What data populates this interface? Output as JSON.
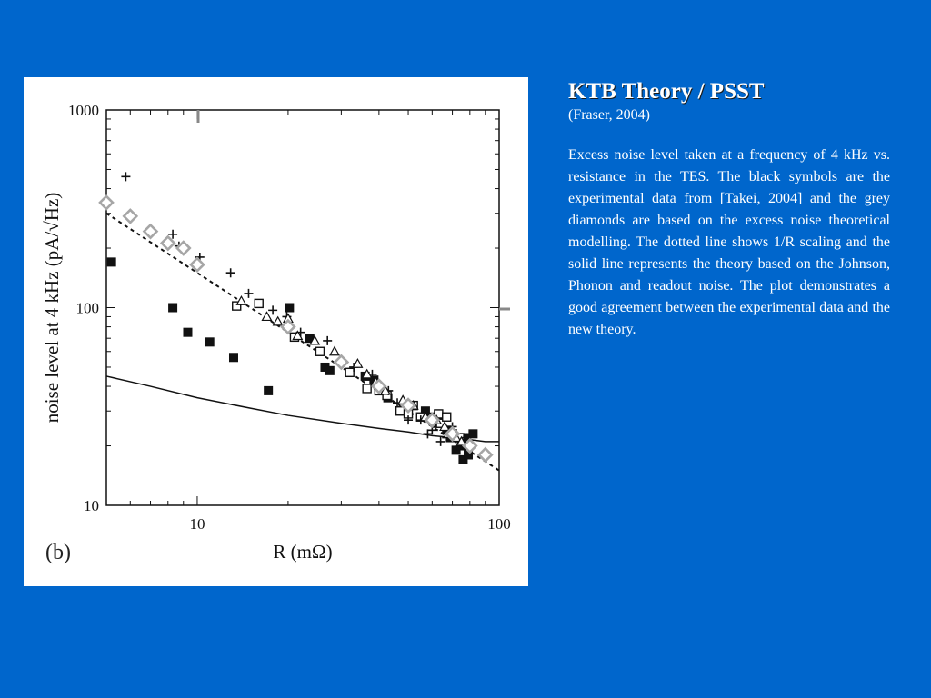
{
  "slide": {
    "title": "KTB Theory / PSST",
    "citation": "(Fraser, 2004)",
    "body": "Excess noise level taken at a frequency of 4 kHz vs. resistance in the TES.  The black symbols are the experimental data from [Takei, 2004] and the grey diamonds are based on the excess noise theoretical modelling.  The dotted line shows 1/R scaling and the solid line represents the theory based on the Johnson, Phonon and readout noise.  The plot demonstrates a good agreement between the experimental data and the new theory.",
    "background_color": "#0066cc"
  },
  "chart_data": {
    "type": "scatter",
    "panel_label": "(b)",
    "xlabel": "R (mΩ)",
    "ylabel": "noise level at 4 kHz (pA/√Hz)",
    "xscale": "log",
    "yscale": "log",
    "xlim": [
      5,
      100
    ],
    "ylim": [
      10,
      1000
    ],
    "x_ticks": [
      "10",
      "100"
    ],
    "y_ticks": [
      "10",
      "100",
      "1000"
    ],
    "grid": false,
    "series": [
      {
        "marker": "filled-square",
        "color": "#111111",
        "x": [
          5.2,
          8.3,
          9.3,
          11,
          13.2,
          17.2,
          20.2,
          23.6,
          26.5,
          27.5,
          36,
          38.5,
          42.8,
          47,
          57,
          60,
          62,
          65,
          67,
          69,
          72,
          75,
          76,
          78,
          79,
          82
        ],
        "y": [
          170,
          100,
          75,
          67,
          56,
          38,
          100,
          70,
          50,
          48,
          45,
          43,
          35,
          30,
          30,
          28,
          26,
          28,
          24,
          22,
          19,
          20,
          17,
          22,
          18,
          23
        ]
      },
      {
        "marker": "open-square",
        "color": "#111111",
        "x": [
          13.5,
          16,
          21,
          25.5,
          32,
          36.5,
          40,
          42.5,
          47,
          50,
          52,
          55,
          61,
          63,
          64,
          67,
          70,
          74
        ],
        "y": [
          102,
          105,
          71,
          60,
          47,
          39,
          38,
          36,
          30,
          29,
          32,
          28,
          27,
          29,
          26,
          28,
          23,
          22
        ]
      },
      {
        "marker": "plus",
        "color": "#111111",
        "x": [
          5.8,
          8.3,
          8.7,
          10.2,
          12.9,
          14.8,
          17.8,
          19.8,
          22,
          27,
          33,
          38,
          43,
          46,
          50,
          55,
          58,
          60,
          64,
          67,
          70,
          75,
          78
        ],
        "y": [
          460,
          235,
          205,
          180,
          150,
          118,
          97,
          90,
          75,
          68,
          50,
          46,
          38,
          33,
          27,
          27,
          23,
          24,
          21,
          22,
          25,
          20,
          22
        ]
      },
      {
        "marker": "open-triangle",
        "color": "#111111",
        "x": [
          14,
          17,
          18.5,
          20,
          21.5,
          24.5,
          28.5,
          34,
          36.5,
          39,
          42,
          48,
          52,
          57,
          62,
          66,
          68,
          72,
          75
        ],
        "y": [
          108,
          90,
          85,
          88,
          72,
          68,
          60,
          52,
          46,
          42,
          38,
          34,
          32,
          28,
          27,
          25,
          23,
          22,
          21
        ]
      },
      {
        "marker": "grey-diamond",
        "color": "#a6a6a6",
        "x": [
          5,
          6,
          7,
          8,
          9,
          10,
          20,
          30,
          40,
          50,
          60,
          70,
          80,
          90
        ],
        "y": [
          340,
          290,
          243,
          212,
          200,
          165,
          80,
          53,
          40,
          32,
          27,
          23,
          20,
          18
        ]
      }
    ],
    "lines": [
      {
        "label": "1/R scaling",
        "style": "dotted",
        "x": [
          5,
          100
        ],
        "y": [
          300,
          15
        ]
      },
      {
        "label": "theory (Johnson, Phonon and readout noise)",
        "style": "solid",
        "x": [
          5,
          7,
          10,
          15,
          20,
          30,
          40,
          50,
          60,
          70,
          80,
          90,
          100
        ],
        "y": [
          45,
          40,
          35,
          31,
          28.5,
          26,
          24.5,
          23.5,
          22.5,
          22,
          21.5,
          21,
          21
        ]
      }
    ]
  }
}
